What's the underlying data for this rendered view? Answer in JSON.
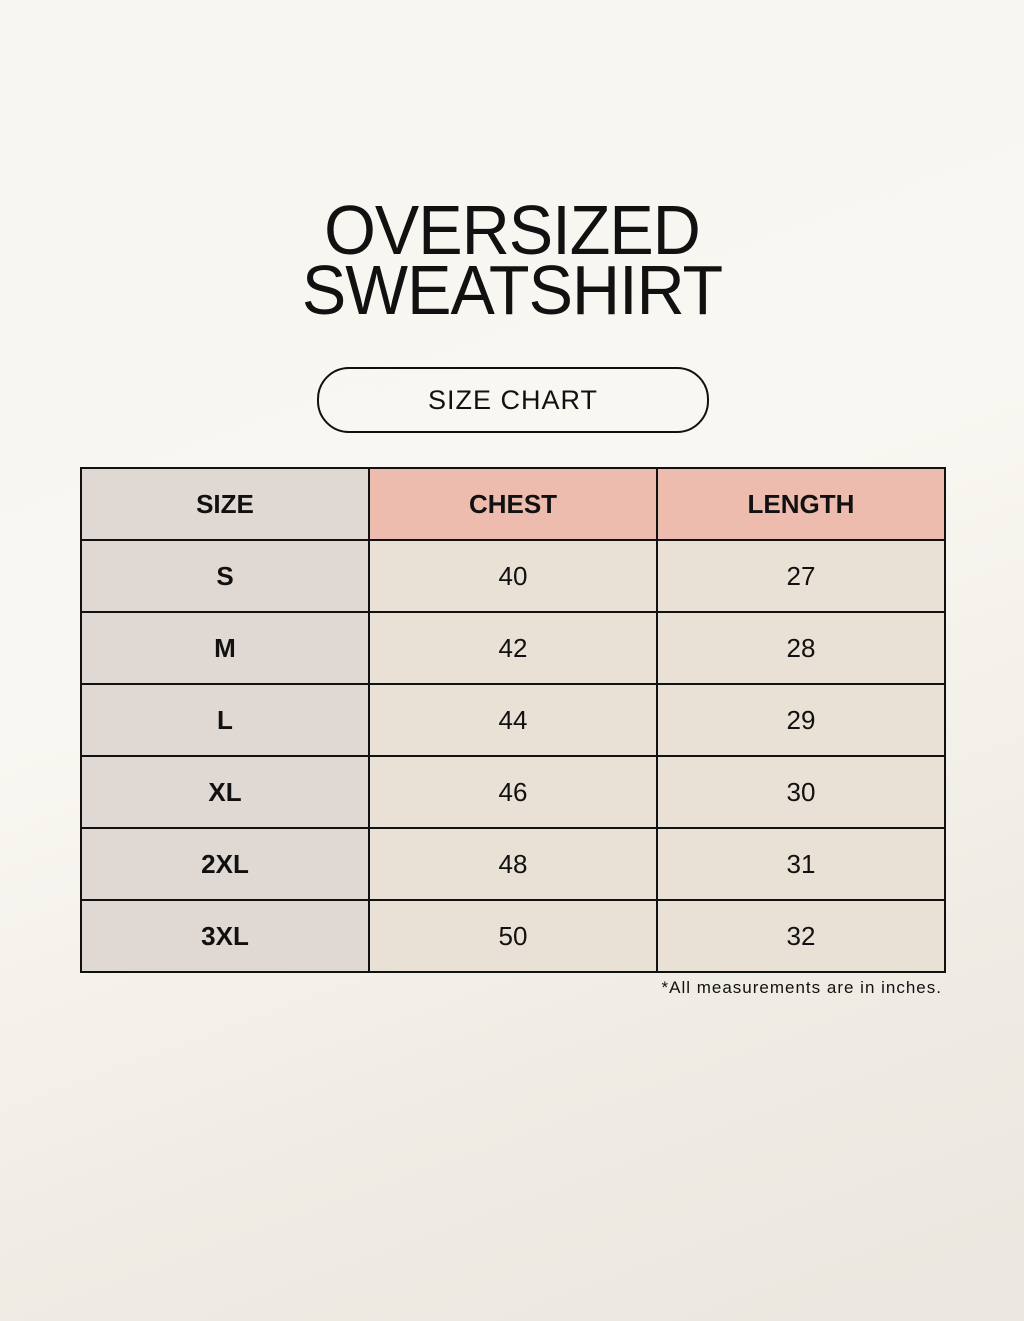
{
  "title": {
    "line1": "OVERSIZED",
    "line2": "SWEATSHIRT"
  },
  "subtitle": "SIZE CHART",
  "chart_data": {
    "type": "table",
    "columns": [
      "SIZE",
      "CHEST",
      "LENGTH"
    ],
    "rows": [
      [
        "S",
        "40",
        "27"
      ],
      [
        "M",
        "42",
        "28"
      ],
      [
        "L",
        "44",
        "29"
      ],
      [
        "XL",
        "46",
        "30"
      ],
      [
        "2XL",
        "48",
        "31"
      ],
      [
        "3XL",
        "50",
        "32"
      ]
    ]
  },
  "colors": {
    "size_column": "#e0d8d2",
    "header_accent": "#edbcae",
    "cell": "#e9e1d6"
  },
  "footnote": "*All measurements are in inches."
}
